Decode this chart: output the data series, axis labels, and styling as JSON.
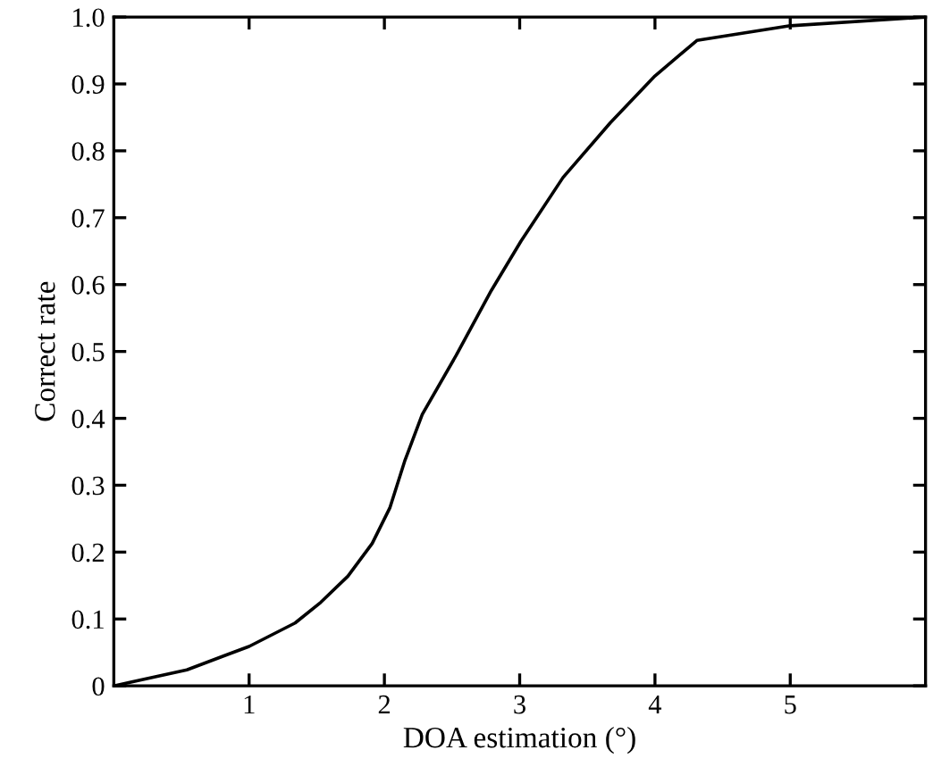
{
  "chart_data": {
    "type": "line",
    "xlabel": "DOA estimation (°)",
    "ylabel": "Correct rate",
    "series": [
      {
        "color": "#000000",
        "x": [
          0,
          0.54,
          1.0,
          1.34,
          1.53,
          1.73,
          1.91,
          2.04,
          2.15,
          2.28,
          2.53,
          2.79,
          3.01,
          3.32,
          3.67,
          4.0,
          4.31,
          5.0,
          6.0
        ],
        "values": [
          0,
          0.024,
          0.059,
          0.094,
          0.125,
          0.164,
          0.213,
          0.266,
          0.336,
          0.406,
          0.494,
          0.591,
          0.665,
          0.76,
          0.842,
          0.912,
          0.965,
          0.987,
          1.0
        ]
      }
    ],
    "xlim": [
      0,
      6
    ],
    "xticks": [
      1,
      2,
      3,
      4,
      5
    ],
    "ylim": [
      0,
      1.0
    ],
    "yticks": [
      0,
      0.1,
      0.2,
      0.3,
      0.4,
      0.5,
      0.6,
      0.7,
      0.8,
      0.9,
      {
        "value": 1,
        "label": "1.0"
      }
    ],
    "grid": false,
    "marker": "none",
    "line_style": "solid"
  }
}
